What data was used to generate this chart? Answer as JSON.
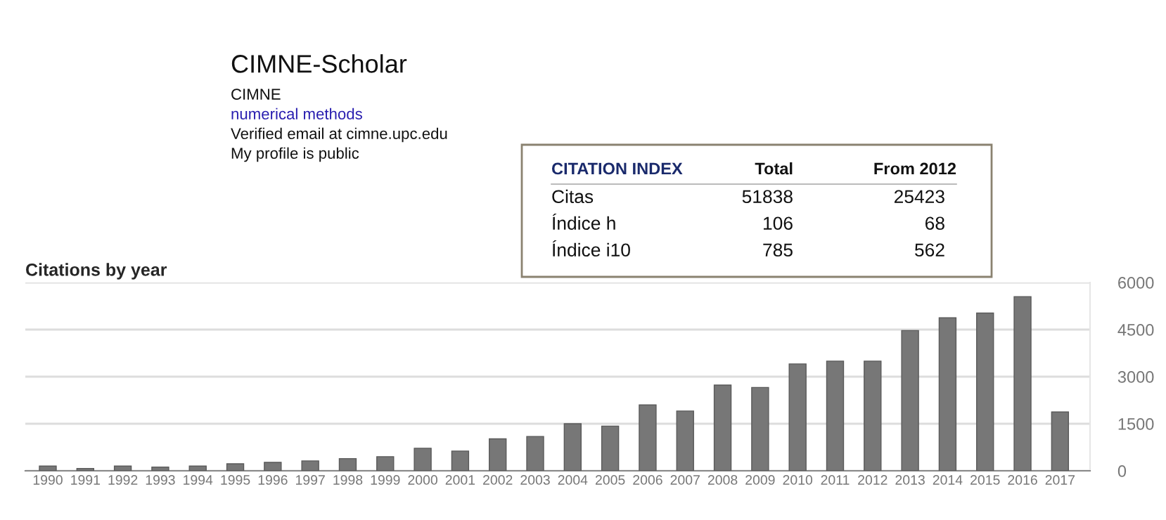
{
  "chart_data": {
    "type": "bar",
    "title": "Citations by year",
    "categories": [
      "1990",
      "1991",
      "1992",
      "1993",
      "1994",
      "1995",
      "1996",
      "1997",
      "1998",
      "1999",
      "2000",
      "2001",
      "2002",
      "2003",
      "2004",
      "2005",
      "2006",
      "2007",
      "2008",
      "2009",
      "2010",
      "2011",
      "2012",
      "2013",
      "2014",
      "2015",
      "2016",
      "2017"
    ],
    "values": [
      150,
      75,
      150,
      120,
      150,
      225,
      270,
      315,
      390,
      450,
      720,
      630,
      1020,
      1095,
      1500,
      1425,
      2100,
      1905,
      2730,
      2655,
      3405,
      3495,
      3495,
      4470,
      4875,
      5025,
      5550,
      1875
    ],
    "color": "#777777",
    "ylim": [
      0,
      6000
    ],
    "yticks": [
      0,
      1500,
      3000,
      4500,
      6000
    ],
    "grid": "y",
    "legend": false,
    "annotations": [
      "CIMNE-Scholar",
      "CIMNE",
      "numerical methods",
      "Verified email at cimne.upc.edu",
      "My profile is public",
      "CITATION INDEX",
      "Total",
      "From 2012",
      "Citas",
      "51838",
      "25423",
      "Índice h",
      "106",
      "68",
      "Índice i10",
      "785",
      "562"
    ]
  }
}
